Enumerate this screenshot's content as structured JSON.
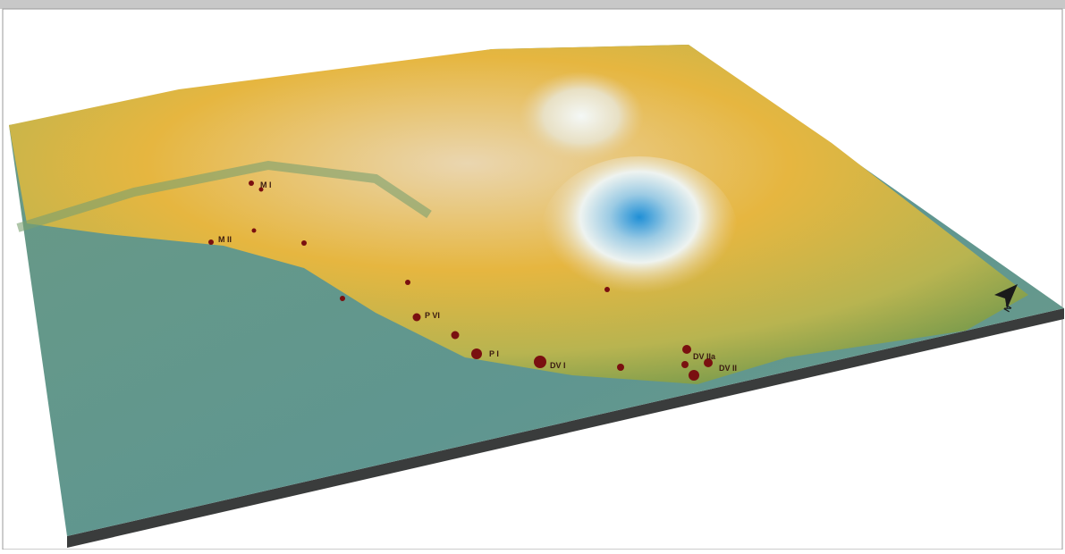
{
  "map": {
    "north_label": "N",
    "sites": [
      {
        "label": "M I"
      },
      {
        "label": "M II"
      },
      {
        "label": "P VI"
      },
      {
        "label": "P I"
      },
      {
        "label": "DV I"
      },
      {
        "label": "DV IIa"
      },
      {
        "label": "DV II"
      }
    ]
  }
}
